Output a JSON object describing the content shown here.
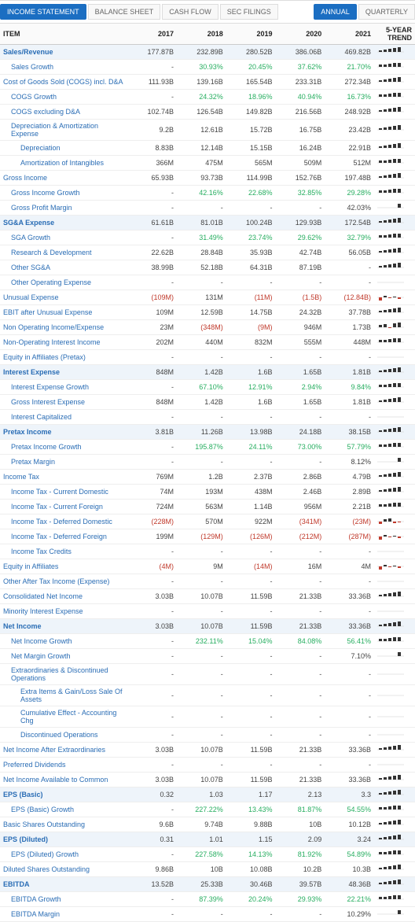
{
  "tabs": {
    "left": [
      "INCOME STATEMENT",
      "BALANCE SHEET",
      "CASH FLOW",
      "SEC FILINGS"
    ],
    "right": [
      "ANNUAL",
      "QUARTERLY"
    ],
    "active_left_index": 0,
    "active_right_index": 0
  },
  "headers": [
    "ITEM",
    "2017",
    "2018",
    "2019",
    "2020",
    "2021",
    "5-YEAR TREND"
  ],
  "colors": {
    "link": "#2a6db5",
    "negative": "#c0392b",
    "positive": "#27ae60",
    "highlight_bg": "#eef4fa",
    "active_tab": "#1b6ec2",
    "spark_bar": "#333"
  },
  "spark_patterns": {
    "rising": [
      2,
      3,
      4,
      5,
      6
    ],
    "rising_slight": [
      3,
      3,
      4,
      5,
      5
    ],
    "varied_neg": [
      -4,
      2,
      -1,
      1,
      -2
    ],
    "single_end": [
      0,
      0,
      0,
      0,
      5
    ],
    "mostly_pos_one_neg": [
      3,
      4,
      -1,
      5,
      6
    ],
    "neg_then_pos": [
      -3,
      3,
      4,
      -2,
      -1
    ],
    "flat": [
      0,
      0,
      0,
      0,
      0
    ]
  },
  "rows": [
    {
      "item": "Sales/Revenue",
      "indent": 0,
      "highlight": true,
      "vals": [
        "177.87B",
        "232.89B",
        "280.52B",
        "386.06B",
        "469.82B"
      ],
      "spark": "rising"
    },
    {
      "item": "Sales Growth",
      "indent": 1,
      "vals": [
        "-",
        "30.93%",
        "20.45%",
        "37.62%",
        "21.70%"
      ],
      "styles": [
        "",
        "pos-green",
        "pos-green",
        "pos-green",
        "pos-green"
      ],
      "spark": "rising_slight"
    },
    {
      "item": "Cost of Goods Sold (COGS) incl. D&A",
      "indent": 0,
      "vals": [
        "111.93B",
        "139.16B",
        "165.54B",
        "233.31B",
        "272.34B"
      ],
      "spark": "rising"
    },
    {
      "item": "COGS Growth",
      "indent": 1,
      "vals": [
        "-",
        "24.32%",
        "18.96%",
        "40.94%",
        "16.73%"
      ],
      "styles": [
        "",
        "pos-green",
        "pos-green",
        "pos-green",
        "pos-green"
      ],
      "spark": "rising_slight"
    },
    {
      "item": "COGS excluding D&A",
      "indent": 1,
      "vals": [
        "102.74B",
        "126.54B",
        "149.82B",
        "216.56B",
        "248.92B"
      ],
      "spark": "rising"
    },
    {
      "item": "Depreciation & Amortization Expense",
      "indent": 1,
      "vals": [
        "9.2B",
        "12.61B",
        "15.72B",
        "16.75B",
        "23.42B"
      ],
      "spark": "rising"
    },
    {
      "item": "Depreciation",
      "indent": 2,
      "vals": [
        "8.83B",
        "12.14B",
        "15.15B",
        "16.24B",
        "22.91B"
      ],
      "spark": "rising"
    },
    {
      "item": "Amortization of Intangibles",
      "indent": 2,
      "vals": [
        "366M",
        "475M",
        "565M",
        "509M",
        "512M"
      ],
      "spark": "rising_slight"
    },
    {
      "item": "Gross Income",
      "indent": 0,
      "vals": [
        "65.93B",
        "93.73B",
        "114.99B",
        "152.76B",
        "197.48B"
      ],
      "spark": "rising"
    },
    {
      "item": "Gross Income Growth",
      "indent": 1,
      "vals": [
        "-",
        "42.16%",
        "22.68%",
        "32.85%",
        "29.28%"
      ],
      "styles": [
        "",
        "pos-green",
        "pos-green",
        "pos-green",
        "pos-green"
      ],
      "spark": "rising_slight"
    },
    {
      "item": "Gross Profit Margin",
      "indent": 1,
      "vals": [
        "-",
        "-",
        "-",
        "-",
        "42.03%"
      ],
      "spark": "single_end"
    },
    {
      "item": "SG&A Expense",
      "indent": 0,
      "highlight": true,
      "vals": [
        "61.61B",
        "81.01B",
        "100.24B",
        "129.93B",
        "172.54B"
      ],
      "spark": "rising"
    },
    {
      "item": "SGA Growth",
      "indent": 1,
      "vals": [
        "-",
        "31.49%",
        "23.74%",
        "29.62%",
        "32.79%"
      ],
      "styles": [
        "",
        "pos-green",
        "pos-green",
        "pos-green",
        "pos-green"
      ],
      "spark": "rising_slight"
    },
    {
      "item": "Research & Development",
      "indent": 1,
      "vals": [
        "22.62B",
        "28.84B",
        "35.93B",
        "42.74B",
        "56.05B"
      ],
      "spark": "rising"
    },
    {
      "item": "Other SG&A",
      "indent": 1,
      "vals": [
        "38.99B",
        "52.18B",
        "64.31B",
        "87.19B",
        "-"
      ],
      "spark": "rising"
    },
    {
      "item": "Other Operating Expense",
      "indent": 1,
      "vals": [
        "-",
        "-",
        "-",
        "-",
        "-"
      ],
      "spark": "flat"
    },
    {
      "item": "Unusual Expense",
      "indent": 0,
      "vals": [
        "(109M)",
        "131M",
        "(11M)",
        "(1.5B)",
        "(12.84B)"
      ],
      "styles": [
        "neg",
        "",
        "neg",
        "neg",
        "neg"
      ],
      "spark": "varied_neg"
    },
    {
      "item": "EBIT after Unusual Expense",
      "indent": 0,
      "vals": [
        "109M",
        "12.59B",
        "14.75B",
        "24.32B",
        "37.78B"
      ],
      "spark": "rising"
    },
    {
      "item": "Non Operating Income/Expense",
      "indent": 0,
      "vals": [
        "23M",
        "(348M)",
        "(9M)",
        "946M",
        "1.73B"
      ],
      "styles": [
        "",
        "neg",
        "neg",
        "",
        ""
      ],
      "spark": "mostly_pos_one_neg"
    },
    {
      "item": "Non-Operating Interest Income",
      "indent": 0,
      "vals": [
        "202M",
        "440M",
        "832M",
        "555M",
        "448M"
      ],
      "spark": "rising_slight"
    },
    {
      "item": "Equity in Affiliates (Pretax)",
      "indent": 0,
      "vals": [
        "-",
        "-",
        "-",
        "-",
        "-"
      ],
      "spark": "flat"
    },
    {
      "item": "Interest Expense",
      "indent": 0,
      "highlight": true,
      "vals": [
        "848M",
        "1.42B",
        "1.6B",
        "1.65B",
        "1.81B"
      ],
      "spark": "rising"
    },
    {
      "item": "Interest Expense Growth",
      "indent": 1,
      "vals": [
        "-",
        "67.10%",
        "12.91%",
        "2.94%",
        "9.84%"
      ],
      "styles": [
        "",
        "pos-green",
        "pos-green",
        "pos-green",
        "pos-green"
      ],
      "spark": "rising_slight"
    },
    {
      "item": "Gross Interest Expense",
      "indent": 1,
      "vals": [
        "848M",
        "1.42B",
        "1.6B",
        "1.65B",
        "1.81B"
      ],
      "spark": "rising"
    },
    {
      "item": "Interest Capitalized",
      "indent": 1,
      "vals": [
        "-",
        "-",
        "-",
        "-",
        "-"
      ],
      "spark": "flat"
    },
    {
      "item": "Pretax Income",
      "indent": 0,
      "highlight": true,
      "vals": [
        "3.81B",
        "11.26B",
        "13.98B",
        "24.18B",
        "38.15B"
      ],
      "spark": "rising"
    },
    {
      "item": "Pretax Income Growth",
      "indent": 1,
      "vals": [
        "-",
        "195.87%",
        "24.11%",
        "73.00%",
        "57.79%"
      ],
      "styles": [
        "",
        "pos-green",
        "pos-green",
        "pos-green",
        "pos-green"
      ],
      "spark": "rising_slight"
    },
    {
      "item": "Pretax Margin",
      "indent": 1,
      "vals": [
        "-",
        "-",
        "-",
        "-",
        "8.12%"
      ],
      "spark": "single_end"
    },
    {
      "item": "Income Tax",
      "indent": 0,
      "vals": [
        "769M",
        "1.2B",
        "2.37B",
        "2.86B",
        "4.79B"
      ],
      "spark": "rising"
    },
    {
      "item": "Income Tax - Current Domestic",
      "indent": 1,
      "vals": [
        "74M",
        "193M",
        "438M",
        "2.46B",
        "2.89B"
      ],
      "spark": "rising"
    },
    {
      "item": "Income Tax - Current Foreign",
      "indent": 1,
      "vals": [
        "724M",
        "563M",
        "1.14B",
        "956M",
        "2.21B"
      ],
      "spark": "rising_slight"
    },
    {
      "item": "Income Tax - Deferred Domestic",
      "indent": 1,
      "vals": [
        "(228M)",
        "570M",
        "922M",
        "(341M)",
        "(23M)"
      ],
      "styles": [
        "neg",
        "",
        "",
        "neg",
        "neg"
      ],
      "spark": "neg_then_pos"
    },
    {
      "item": "Income Tax - Deferred Foreign",
      "indent": 1,
      "vals": [
        "199M",
        "(129M)",
        "(126M)",
        "(212M)",
        "(287M)"
      ],
      "styles": [
        "",
        "neg",
        "neg",
        "neg",
        "neg"
      ],
      "spark": "varied_neg"
    },
    {
      "item": "Income Tax Credits",
      "indent": 1,
      "vals": [
        "-",
        "-",
        "-",
        "-",
        "-"
      ],
      "spark": "flat"
    },
    {
      "item": "Equity in Affiliates",
      "indent": 0,
      "vals": [
        "(4M)",
        "9M",
        "(14M)",
        "16M",
        "4M"
      ],
      "styles": [
        "neg",
        "",
        "neg",
        "",
        ""
      ],
      "spark": "varied_neg"
    },
    {
      "item": "Other After Tax Income (Expense)",
      "indent": 0,
      "vals": [
        "-",
        "-",
        "-",
        "-",
        "-"
      ],
      "spark": "flat"
    },
    {
      "item": "Consolidated Net Income",
      "indent": 0,
      "vals": [
        "3.03B",
        "10.07B",
        "11.59B",
        "21.33B",
        "33.36B"
      ],
      "spark": "rising"
    },
    {
      "item": "Minority Interest Expense",
      "indent": 0,
      "vals": [
        "-",
        "-",
        "-",
        "-",
        "-"
      ],
      "spark": "flat"
    },
    {
      "item": "Net Income",
      "indent": 0,
      "highlight": true,
      "vals": [
        "3.03B",
        "10.07B",
        "11.59B",
        "21.33B",
        "33.36B"
      ],
      "spark": "rising"
    },
    {
      "item": "Net Income Growth",
      "indent": 1,
      "vals": [
        "-",
        "232.11%",
        "15.04%",
        "84.08%",
        "56.41%"
      ],
      "styles": [
        "",
        "pos-green",
        "pos-green",
        "pos-green",
        "pos-green"
      ],
      "spark": "rising_slight"
    },
    {
      "item": "Net Margin Growth",
      "indent": 1,
      "vals": [
        "-",
        "-",
        "-",
        "-",
        "7.10%"
      ],
      "spark": "single_end"
    },
    {
      "item": "Extraordinaries & Discontinued Operations",
      "indent": 1,
      "vals": [
        "-",
        "-",
        "-",
        "-",
        "-"
      ],
      "spark": "flat"
    },
    {
      "item": "Extra Items & Gain/Loss Sale Of Assets",
      "indent": 2,
      "vals": [
        "-",
        "-",
        "-",
        "-",
        "-"
      ],
      "spark": "flat"
    },
    {
      "item": "Cumulative Effect - Accounting Chg",
      "indent": 2,
      "vals": [
        "-",
        "-",
        "-",
        "-",
        "-"
      ],
      "spark": "flat"
    },
    {
      "item": "Discontinued Operations",
      "indent": 2,
      "vals": [
        "-",
        "-",
        "-",
        "-",
        "-"
      ],
      "spark": "flat"
    },
    {
      "item": "Net Income After Extraordinaries",
      "indent": 0,
      "vals": [
        "3.03B",
        "10.07B",
        "11.59B",
        "21.33B",
        "33.36B"
      ],
      "spark": "rising"
    },
    {
      "item": "Preferred Dividends",
      "indent": 0,
      "vals": [
        "-",
        "-",
        "-",
        "-",
        "-"
      ],
      "spark": "flat"
    },
    {
      "item": "Net Income Available to Common",
      "indent": 0,
      "vals": [
        "3.03B",
        "10.07B",
        "11.59B",
        "21.33B",
        "33.36B"
      ],
      "spark": "rising"
    },
    {
      "item": "EPS (Basic)",
      "indent": 0,
      "highlight": true,
      "vals": [
        "0.32",
        "1.03",
        "1.17",
        "2.13",
        "3.3"
      ],
      "spark": "rising"
    },
    {
      "item": "EPS (Basic) Growth",
      "indent": 1,
      "vals": [
        "-",
        "227.22%",
        "13.43%",
        "81.87%",
        "54.55%"
      ],
      "styles": [
        "",
        "pos-green",
        "pos-green",
        "pos-green",
        "pos-green"
      ],
      "spark": "rising_slight"
    },
    {
      "item": "Basic Shares Outstanding",
      "indent": 0,
      "vals": [
        "9.6B",
        "9.74B",
        "9.88B",
        "10B",
        "10.12B"
      ],
      "spark": "rising"
    },
    {
      "item": "EPS (Diluted)",
      "indent": 0,
      "highlight": true,
      "vals": [
        "0.31",
        "1.01",
        "1.15",
        "2.09",
        "3.24"
      ],
      "spark": "rising"
    },
    {
      "item": "EPS (Diluted) Growth",
      "indent": 1,
      "vals": [
        "-",
        "227.58%",
        "14.13%",
        "81.92%",
        "54.89%"
      ],
      "styles": [
        "",
        "pos-green",
        "pos-green",
        "pos-green",
        "pos-green"
      ],
      "spark": "rising_slight"
    },
    {
      "item": "Diluted Shares Outstanding",
      "indent": 0,
      "vals": [
        "9.86B",
        "10B",
        "10.08B",
        "10.2B",
        "10.3B"
      ],
      "spark": "rising"
    },
    {
      "item": "EBITDA",
      "indent": 0,
      "highlight": true,
      "vals": [
        "13.52B",
        "25.33B",
        "30.46B",
        "39.57B",
        "48.36B"
      ],
      "spark": "rising"
    },
    {
      "item": "EBITDA Growth",
      "indent": 1,
      "vals": [
        "-",
        "87.39%",
        "20.24%",
        "29.93%",
        "22.21%"
      ],
      "styles": [
        "",
        "pos-green",
        "pos-green",
        "pos-green",
        "pos-green"
      ],
      "spark": "rising_slight"
    },
    {
      "item": "EBITDA Margin",
      "indent": 1,
      "vals": [
        "-",
        "-",
        "-",
        "-",
        "10.29%"
      ],
      "spark": "single_end"
    }
  ]
}
